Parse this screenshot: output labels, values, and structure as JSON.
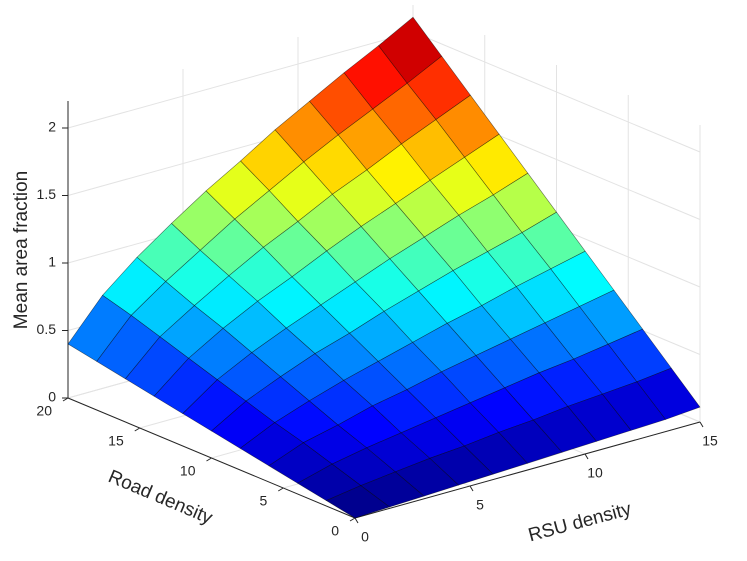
{
  "chart_data": {
    "type": "surface",
    "x_label": "RSU density",
    "y_label": "Road density",
    "z_label": "Mean area fraction",
    "x": [
      0,
      1.5,
      3,
      4.5,
      6,
      7.5,
      9,
      10.5,
      12,
      13.5,
      15
    ],
    "y": [
      0,
      2,
      4,
      6,
      8,
      10,
      12,
      14,
      16,
      18,
      20
    ],
    "z": [
      [
        0,
        0.01,
        0.02,
        0.03,
        0.04,
        0.05,
        0.06,
        0.07,
        0.08,
        0.09,
        0.11
      ],
      [
        0.04,
        0.08,
        0.11,
        0.14,
        0.16,
        0.19,
        0.21,
        0.24,
        0.26,
        0.28,
        0.31
      ],
      [
        0.08,
        0.15,
        0.2,
        0.24,
        0.28,
        0.32,
        0.36,
        0.4,
        0.43,
        0.47,
        0.51
      ],
      [
        0.12,
        0.22,
        0.28,
        0.35,
        0.4,
        0.46,
        0.51,
        0.56,
        0.61,
        0.66,
        0.71
      ],
      [
        0.16,
        0.28,
        0.37,
        0.45,
        0.52,
        0.59,
        0.66,
        0.72,
        0.79,
        0.85,
        0.91
      ],
      [
        0.2,
        0.35,
        0.46,
        0.56,
        0.64,
        0.73,
        0.81,
        0.89,
        0.96,
        1.03,
        1.11
      ],
      [
        0.24,
        0.42,
        0.55,
        0.66,
        0.76,
        0.86,
        0.96,
        1.05,
        1.14,
        1.22,
        1.31
      ],
      [
        0.28,
        0.49,
        0.64,
        0.77,
        0.88,
        1.0,
        1.11,
        1.21,
        1.31,
        1.41,
        1.51
      ],
      [
        0.32,
        0.56,
        0.72,
        0.87,
        1.01,
        1.13,
        1.26,
        1.37,
        1.49,
        1.6,
        1.71
      ],
      [
        0.36,
        0.63,
        0.81,
        0.97,
        1.13,
        1.27,
        1.41,
        1.54,
        1.66,
        1.78,
        1.91
      ],
      [
        0.4,
        0.69,
        0.9,
        1.08,
        1.25,
        1.4,
        1.56,
        1.7,
        1.84,
        1.97,
        2.11
      ]
    ],
    "xlim": [
      0,
      15
    ],
    "ylim": [
      0,
      20
    ],
    "zlim": [
      0,
      2.2
    ],
    "xticks": [
      0,
      5,
      10,
      15
    ],
    "yticks": [
      0,
      5,
      10,
      15,
      20
    ],
    "zticks": [
      0,
      0.5,
      1,
      1.5,
      2
    ],
    "colormap": "jet",
    "grid": true
  }
}
